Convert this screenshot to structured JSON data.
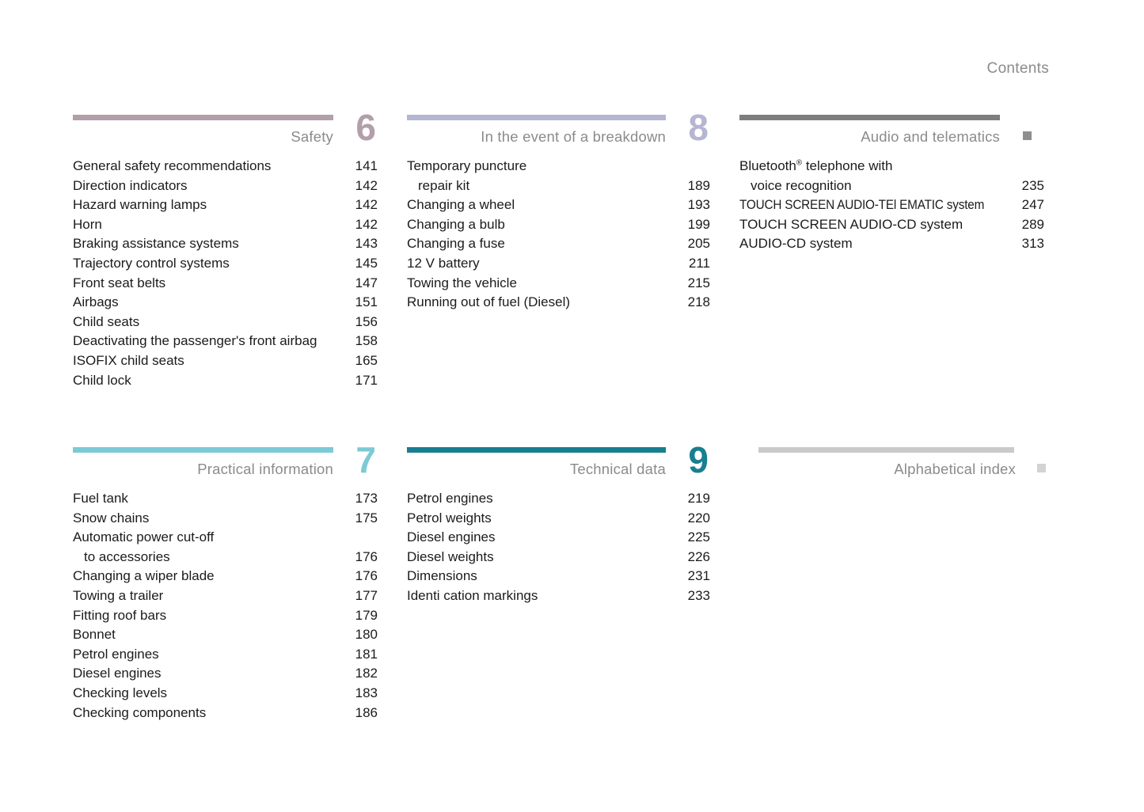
{
  "page": {
    "title": "Contents"
  },
  "colors": {
    "item_text": "#1b1b1b",
    "section_title_text": "#8b8b8b"
  },
  "sections": [
    {
      "id": "safety",
      "title": "Safety",
      "number": "6",
      "bar_color": "#b29fa9",
      "number_color": "#b29fa9",
      "marker_color": null,
      "items": [
        {
          "lines": [
            "General safety recommendations"
          ],
          "page": "141"
        },
        {
          "lines": [
            "Direction indicators"
          ],
          "page": "142"
        },
        {
          "lines": [
            "Hazard warning lamps"
          ],
          "page": "142"
        },
        {
          "lines": [
            "Horn"
          ],
          "page": "142"
        },
        {
          "lines": [
            "Braking assistance systems"
          ],
          "page": "143"
        },
        {
          "lines": [
            "Trajectory control systems"
          ],
          "page": "145"
        },
        {
          "lines": [
            "Front seat belts"
          ],
          "page": "147"
        },
        {
          "lines": [
            "Airbags"
          ],
          "page": "151"
        },
        {
          "lines": [
            "Child seats"
          ],
          "page": "156"
        },
        {
          "lines": [
            "Deactivating the passenger's front airbag"
          ],
          "page": "158"
        },
        {
          "lines": [
            "ISOFIX child seats"
          ],
          "page": "165"
        },
        {
          "lines": [
            "Child lock"
          ],
          "page": "171"
        }
      ]
    },
    {
      "id": "breakdown",
      "title": "In the event of a breakdown",
      "number": "8",
      "bar_color": "#b4b6d2",
      "number_color": "#b4b6d2",
      "marker_color": null,
      "items": [
        {
          "lines": [
            "Temporary puncture",
            "repair kit"
          ],
          "page": "189"
        },
        {
          "lines": [
            "Changing a wheel"
          ],
          "page": "193"
        },
        {
          "lines": [
            "Changing a bulb"
          ],
          "page": "199"
        },
        {
          "lines": [
            "Changing a fuse"
          ],
          "page": "205"
        },
        {
          "lines": [
            "12 V battery"
          ],
          "page": "211"
        },
        {
          "lines": [
            "Towing the vehicle"
          ],
          "page": "215"
        },
        {
          "lines": [
            "Running out of fuel (Diesel)"
          ],
          "page": "218"
        }
      ]
    },
    {
      "id": "audio",
      "title": "Audio and telematics",
      "number": null,
      "bar_color": "#7e7e7e",
      "number_color": null,
      "marker_color": "#8f8f8f",
      "items": [
        {
          "lines": [
            "Bluetooth® telephone with",
            "voice recognition"
          ],
          "page": "235"
        },
        {
          "lines": [
            "TOUCH SCREEN AUDIO-TEl EMATIC system"
          ],
          "page": "247",
          "condensed": true
        },
        {
          "lines": [
            "TOUCH SCREEN AUDIO-CD system"
          ],
          "page": "289"
        },
        {
          "lines": [
            "AUDIO-CD system"
          ],
          "page": "313"
        }
      ]
    },
    {
      "id": "practical",
      "title": "Practical information",
      "number": "7",
      "bar_color": "#7ccad6",
      "number_color": "#7ccad6",
      "marker_color": null,
      "items": [
        {
          "lines": [
            "Fuel tank"
          ],
          "page": "173"
        },
        {
          "lines": [
            "Snow chains"
          ],
          "page": "175"
        },
        {
          "lines": [
            "Automatic power cut-off",
            "to accessories"
          ],
          "page": "176"
        },
        {
          "lines": [
            "Changing a wiper blade"
          ],
          "page": "176"
        },
        {
          "lines": [
            "Towing a trailer"
          ],
          "page": "177"
        },
        {
          "lines": [
            "Fitting roof bars"
          ],
          "page": "179"
        },
        {
          "lines": [
            "Bonnet"
          ],
          "page": "180"
        },
        {
          "lines": [
            "Petrol engines"
          ],
          "page": "181"
        },
        {
          "lines": [
            "Diesel engines"
          ],
          "page": "182"
        },
        {
          "lines": [
            "Checking levels"
          ],
          "page": "183"
        },
        {
          "lines": [
            "Checking components"
          ],
          "page": "186"
        }
      ]
    },
    {
      "id": "technical",
      "title": "Technical data",
      "number": "9",
      "bar_color": "#177f90",
      "number_color": "#177f90",
      "marker_color": null,
      "items": [
        {
          "lines": [
            "Petrol engines"
          ],
          "page": "219"
        },
        {
          "lines": [
            "Petrol weights"
          ],
          "page": "220"
        },
        {
          "lines": [
            "Diesel engines"
          ],
          "page": "225"
        },
        {
          "lines": [
            "Diesel weights"
          ],
          "page": "226"
        },
        {
          "lines": [
            "Dimensions"
          ],
          "page": "231"
        },
        {
          "lines": [
            "Identi cation markings"
          ],
          "page": "233"
        }
      ]
    },
    {
      "id": "index",
      "title": "Alphabetical index",
      "number": null,
      "bar_color": "#cacaca",
      "number_color": null,
      "marker_color": "#d3d3d3",
      "items": []
    }
  ]
}
